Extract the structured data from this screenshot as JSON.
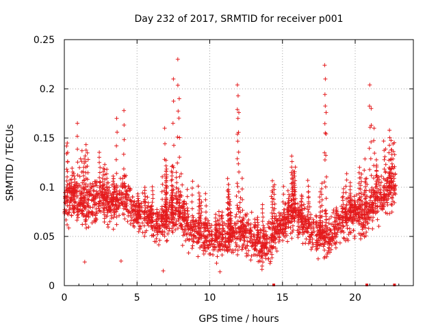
{
  "chart_data": {
    "type": "scatter",
    "title": "Day 232 of 2017, SRMTID for receiver p001",
    "xlabel": "GPS time / hours",
    "ylabel": "SRMTID / TECUs",
    "xlim": [
      0,
      24
    ],
    "ylim": [
      0,
      0.25
    ],
    "xticks": [
      0,
      5,
      10,
      15,
      20
    ],
    "xtick_labels": [
      "0",
      "5",
      "10",
      "15",
      "20"
    ],
    "yticks": [
      0,
      0.05,
      0.1,
      0.15,
      0.2,
      0.25
    ],
    "ytick_labels": [
      "0",
      "0.05",
      "0.1",
      "0.15",
      "0.2",
      "0.25"
    ],
    "grid": true,
    "marker": "+",
    "color": "#e41a1c",
    "series": [
      {
        "name": "SRMTID",
        "trend": [
          [
            0.0,
            0.085
          ],
          [
            0.5,
            0.09
          ],
          [
            1.0,
            0.085
          ],
          [
            1.5,
            0.08
          ],
          [
            2.0,
            0.085
          ],
          [
            2.5,
            0.09
          ],
          [
            3.0,
            0.085
          ],
          [
            3.5,
            0.085
          ],
          [
            4.0,
            0.09
          ],
          [
            4.5,
            0.085
          ],
          [
            5.0,
            0.07
          ],
          [
            5.5,
            0.07
          ],
          [
            6.0,
            0.065
          ],
          [
            6.5,
            0.065
          ],
          [
            7.0,
            0.065
          ],
          [
            7.5,
            0.075
          ],
          [
            8.0,
            0.07
          ],
          [
            8.5,
            0.06
          ],
          [
            9.0,
            0.055
          ],
          [
            9.5,
            0.05
          ],
          [
            10.0,
            0.05
          ],
          [
            10.5,
            0.045
          ],
          [
            11.0,
            0.045
          ],
          [
            11.5,
            0.05
          ],
          [
            12.0,
            0.055
          ],
          [
            12.5,
            0.055
          ],
          [
            13.0,
            0.05
          ],
          [
            13.5,
            0.04
          ],
          [
            14.0,
            0.04
          ],
          [
            14.5,
            0.05
          ],
          [
            15.0,
            0.06
          ],
          [
            15.5,
            0.07
          ],
          [
            16.0,
            0.07
          ],
          [
            16.5,
            0.065
          ],
          [
            17.0,
            0.055
          ],
          [
            17.5,
            0.05
          ],
          [
            18.0,
            0.045
          ],
          [
            18.5,
            0.055
          ],
          [
            19.0,
            0.065
          ],
          [
            19.5,
            0.07
          ],
          [
            20.0,
            0.075
          ],
          [
            20.5,
            0.07
          ],
          [
            21.0,
            0.075
          ],
          [
            21.5,
            0.09
          ],
          [
            22.0,
            0.09
          ],
          [
            22.5,
            0.1
          ],
          [
            22.8,
            0.095
          ]
        ],
        "spikes": [
          [
            0.2,
            0.145
          ],
          [
            0.9,
            0.165
          ],
          [
            3.6,
            0.17
          ],
          [
            4.1,
            0.178
          ],
          [
            6.9,
            0.16
          ],
          [
            7.5,
            0.21
          ],
          [
            7.8,
            0.23
          ],
          [
            7.9,
            0.19
          ],
          [
            11.9,
            0.204
          ],
          [
            11.95,
            0.193
          ],
          [
            12.0,
            0.176
          ],
          [
            17.9,
            0.224
          ],
          [
            17.95,
            0.21
          ],
          [
            18.0,
            0.176
          ],
          [
            21.0,
            0.204
          ],
          [
            21.1,
            0.18
          ],
          [
            21.3,
            0.16
          ],
          [
            22.6,
            0.144
          ]
        ],
        "lows": [
          [
            1.4,
            0.024
          ],
          [
            3.9,
            0.025
          ],
          [
            6.8,
            0.015
          ],
          [
            10.7,
            0.014
          ],
          [
            13.6,
            0.02
          ]
        ]
      }
    ],
    "gap_markers": [
      14.4,
      20.8,
      22.7
    ]
  }
}
